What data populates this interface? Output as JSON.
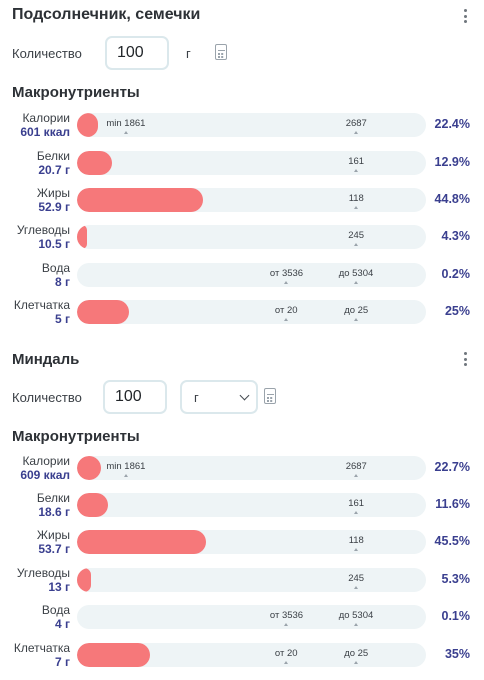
{
  "foods": [
    {
      "name": "Подсолнечник, семечки",
      "quantity_label": "Количество",
      "quantity": "100",
      "unit": "г",
      "unit_is_select": false,
      "section_title": "Макронутриенты",
      "nutrients": [
        {
          "name": "Калории",
          "value": "601 ккал",
          "fill": 0.06,
          "marks": [
            {
              "text": "min 1861",
              "pos": 0.14
            },
            {
              "text": "2687",
              "pos": 0.8
            }
          ],
          "percent": "22.4%"
        },
        {
          "name": "Белки",
          "value": "20.7 г",
          "fill": 0.1,
          "marks": [
            {
              "text": "161",
              "pos": 0.8
            }
          ],
          "percent": "12.9%"
        },
        {
          "name": "Жиры",
          "value": "52.9 г",
          "fill": 0.36,
          "marks": [
            {
              "text": "118",
              "pos": 0.8
            }
          ],
          "percent": "44.8%"
        },
        {
          "name": "Углеводы",
          "value": "10.5 г",
          "fill": 0.03,
          "marks": [
            {
              "text": "245",
              "pos": 0.8
            }
          ],
          "percent": "4.3%"
        },
        {
          "name": "Вода",
          "value": "8 г",
          "fill": 0.0,
          "marks": [
            {
              "text": "от 3536",
              "pos": 0.6
            },
            {
              "text": "до 5304",
              "pos": 0.8
            }
          ],
          "percent": "0.2%"
        },
        {
          "name": "Клетчатка",
          "value": "5 г",
          "fill": 0.15,
          "marks": [
            {
              "text": "от 20",
              "pos": 0.6
            },
            {
              "text": "до 25",
              "pos": 0.8
            }
          ],
          "percent": "25%"
        }
      ]
    },
    {
      "name": "Миндаль",
      "quantity_label": "Количество",
      "quantity": "100",
      "unit": "г",
      "unit_is_select": true,
      "section_title": "Макронутриенты",
      "nutrients": [
        {
          "name": "Калории",
          "value": "609 ккал",
          "fill": 0.07,
          "marks": [
            {
              "text": "min 1861",
              "pos": 0.14
            },
            {
              "text": "2687",
              "pos": 0.8
            }
          ],
          "percent": "22.7%"
        },
        {
          "name": "Белки",
          "value": "18.6 г",
          "fill": 0.09,
          "marks": [
            {
              "text": "161",
              "pos": 0.8
            }
          ],
          "percent": "11.6%"
        },
        {
          "name": "Жиры",
          "value": "53.7 г",
          "fill": 0.37,
          "marks": [
            {
              "text": "118",
              "pos": 0.8
            }
          ],
          "percent": "45.5%"
        },
        {
          "name": "Углеводы",
          "value": "13 г",
          "fill": 0.04,
          "marks": [
            {
              "text": "245",
              "pos": 0.8
            }
          ],
          "percent": "5.3%"
        },
        {
          "name": "Вода",
          "value": "4 г",
          "fill": 0.0,
          "marks": [
            {
              "text": "от 3536",
              "pos": 0.6
            },
            {
              "text": "до 5304",
              "pos": 0.8
            }
          ],
          "percent": "0.1%"
        },
        {
          "name": "Клетчатка",
          "value": "7 г",
          "fill": 0.21,
          "marks": [
            {
              "text": "от 20",
              "pos": 0.6
            },
            {
              "text": "до 25",
              "pos": 0.8
            }
          ],
          "percent": "35%"
        }
      ]
    }
  ],
  "icons": {
    "menu": "more-vertical-icon",
    "calculator": "calculator-icon",
    "dropdown": "chevron-down-icon"
  },
  "colors": {
    "fill": "#f6787a",
    "track": "#eef4f6",
    "value": "#3a3f8f"
  }
}
